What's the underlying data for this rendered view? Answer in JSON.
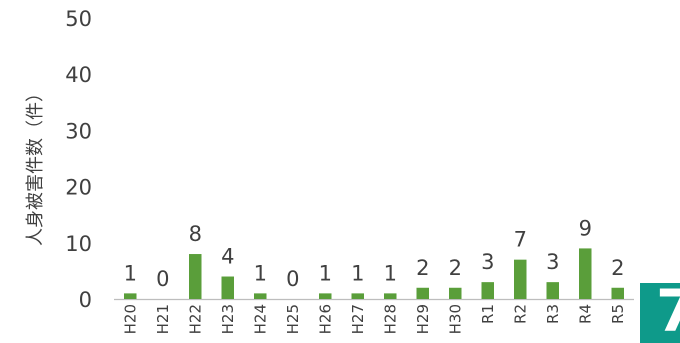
{
  "chart_data": {
    "type": "bar",
    "title": "",
    "xlabel": "",
    "ylabel": "人身被害件数（件）",
    "ylim": [
      0,
      50
    ],
    "yticks": [
      0,
      10,
      20,
      30,
      40,
      50
    ],
    "categories": [
      "H20",
      "H21",
      "H22",
      "H23",
      "H24",
      "H25",
      "H26",
      "H27",
      "H28",
      "H29",
      "H30",
      "R1",
      "R2",
      "R3",
      "R4",
      "R5"
    ],
    "values": [
      1,
      0,
      8,
      4,
      1,
      0,
      1,
      1,
      1,
      2,
      2,
      3,
      7,
      3,
      9,
      2
    ],
    "data_labels_shown": true,
    "grid": false,
    "legend": "none",
    "bar_color": "#5a9e3a",
    "baseline_color": "#bdbdbd",
    "text_color": "#404040"
  },
  "decoration": {
    "corner_badge_text": "7",
    "corner_badge_color": "#0e9a8a"
  }
}
